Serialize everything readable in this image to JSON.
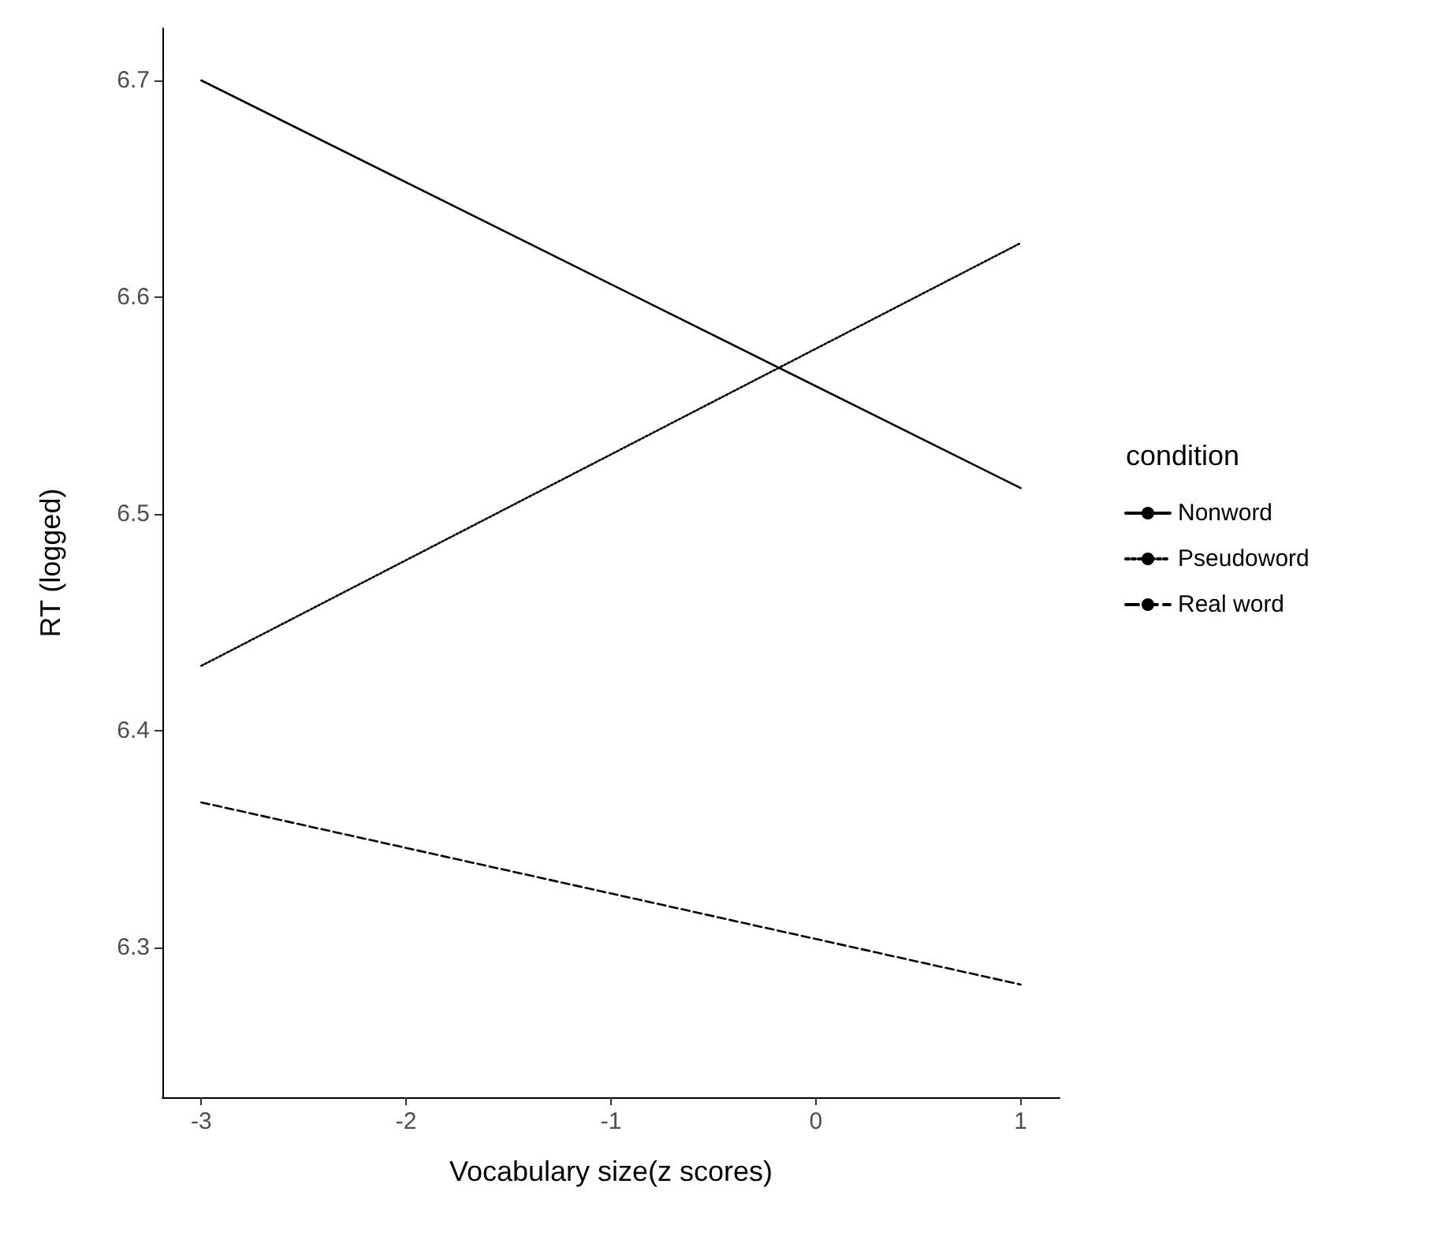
{
  "chart_data": {
    "type": "line",
    "xlabel": "Vocabulary size(z scores)",
    "ylabel": "RT (logged)",
    "legend_title": "condition",
    "x": [
      -3,
      1
    ],
    "xlim": [
      -3.19,
      1.19
    ],
    "ylim": [
      6.231,
      6.724
    ],
    "xticks": [
      -3,
      -2,
      -1,
      0,
      1
    ],
    "yticks": [
      6.3,
      6.4,
      6.5,
      6.6,
      6.7
    ],
    "grid": false,
    "legend": "right",
    "marker": "none",
    "series": [
      {
        "name": "Nonword",
        "color": "#000000",
        "line_style": "solid",
        "values": [
          6.7,
          6.512
        ]
      },
      {
        "name": "Pseudoword",
        "color": "#000000",
        "line_style": "dotted",
        "values": [
          6.43,
          6.625
        ]
      },
      {
        "name": "Real word",
        "color": "#000000",
        "line_style": "dashed",
        "values": [
          6.367,
          6.283
        ]
      }
    ]
  }
}
